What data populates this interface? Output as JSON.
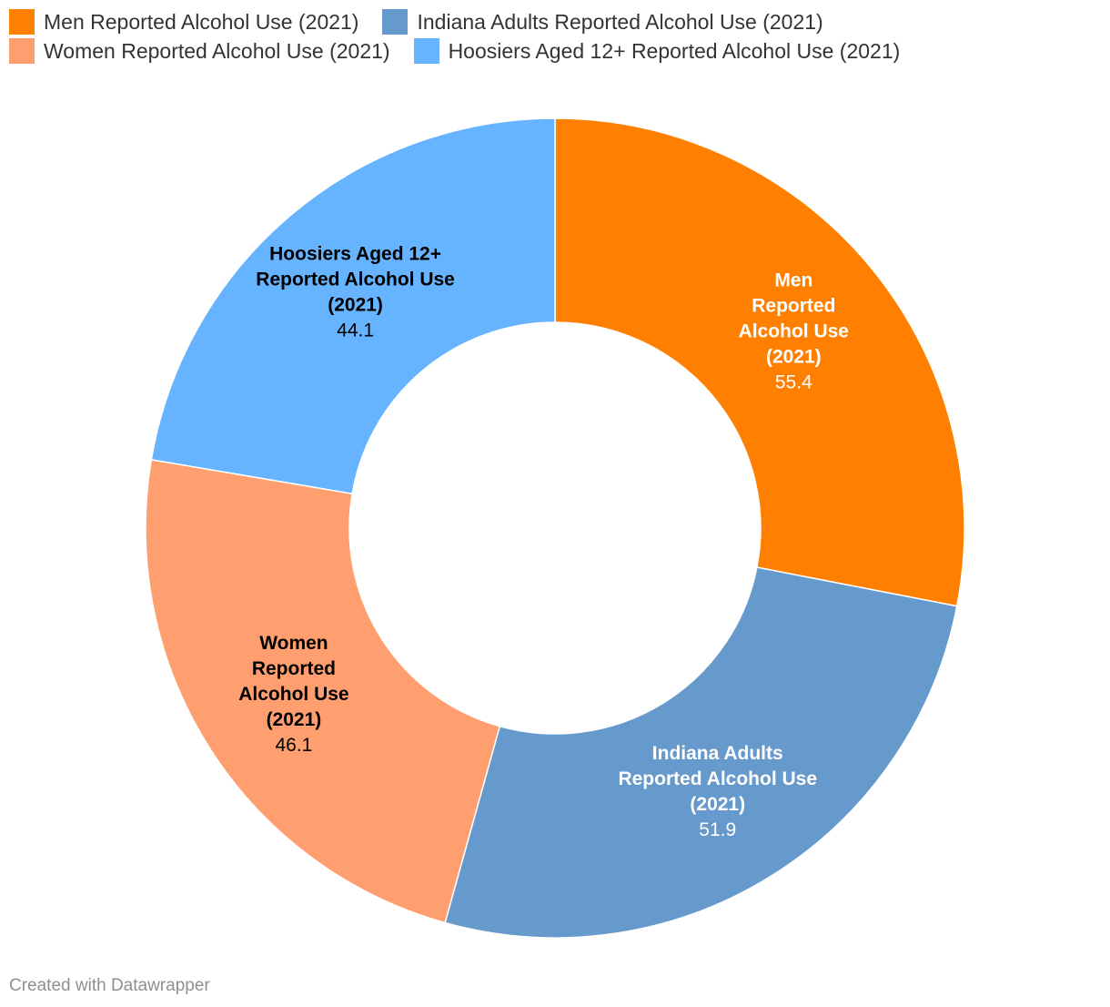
{
  "chart_data": {
    "type": "pie",
    "variant": "donut",
    "categories": [
      "Men Reported Alcohol Use (2021)",
      "Indiana Adults Reported Alcohol Use (2021)",
      "Women Reported Alcohol Use (2021)",
      "Hoosiers Aged 12+ Reported Alcohol Use (2021)"
    ],
    "values": [
      55.4,
      51.9,
      46.1,
      44.1
    ],
    "value_labels": [
      "55.4",
      "51.9",
      "46.1",
      "44.1"
    ],
    "slice_label_lines": [
      [
        "Men",
        "Reported",
        "Alcohol Use",
        "(2021)"
      ],
      [
        "Indiana Adults",
        "Reported Alcohol Use",
        "(2021)"
      ],
      [
        "Women",
        "Reported",
        "Alcohol Use",
        "(2021)"
      ],
      [
        "Hoosiers Aged 12+",
        "Reported Alcohol Use",
        "(2021)"
      ]
    ],
    "colors": [
      "#ff7f00",
      "#6699cc",
      "#ff9e6e",
      "#66b3ff"
    ],
    "label_colors": [
      "#ffffff",
      "#ffffff",
      "#000000",
      "#000000"
    ],
    "legend": {
      "position": "top-left",
      "rows": [
        [
          {
            "label": "Men Reported Alcohol Use (2021)",
            "color": "#ff7f00"
          },
          {
            "label": "Indiana Adults Reported Alcohol Use (2021)",
            "color": "#6699cc"
          }
        ],
        [
          {
            "label": "Women Reported Alcohol Use (2021)",
            "color": "#ff9e6e"
          },
          {
            "label": "Hoosiers Aged 12+ Reported Alcohol Use (2021)",
            "color": "#66b3ff"
          }
        ]
      ]
    }
  },
  "footer": {
    "credit": "Created with Datawrapper"
  }
}
